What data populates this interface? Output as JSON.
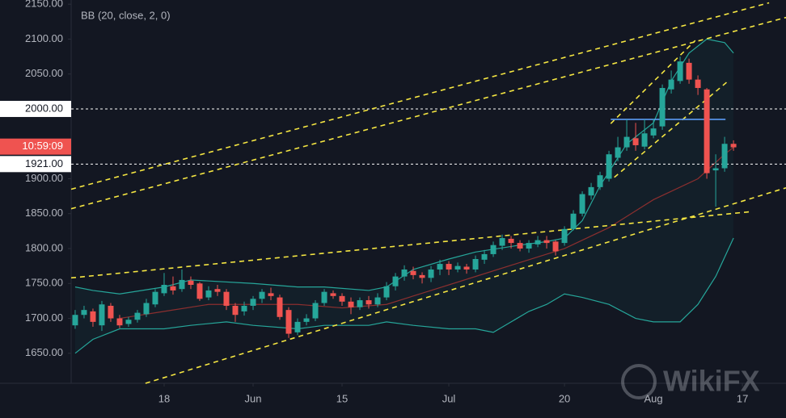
{
  "chart_data": {
    "type": "candlestick",
    "indicator": "BB (20, close, 2, 0)",
    "watermark": "WikiFX",
    "up_color": "#26a69a",
    "down_color": "#ef5350",
    "open": [
      1690,
      1705,
      1710,
      1690,
      1718,
      1700,
      1692,
      1698,
      1706,
      1720,
      1736,
      1746,
      1742,
      1754,
      1750,
      1730,
      1742,
      1738,
      1718,
      1710,
      1718,
      1728,
      1736,
      1730,
      1712,
      1680,
      1695,
      1700,
      1722,
      1736,
      1732,
      1724,
      1716,
      1726,
      1720,
      1730,
      1746,
      1760,
      1768,
      1762,
      1758,
      1770,
      1778,
      1770,
      1774,
      1770,
      1784,
      1792,
      1804,
      1814,
      1808,
      1800,
      1806,
      1812,
      1810,
      1808,
      1828,
      1850,
      1876,
      1888,
      1900,
      1930,
      1945,
      1958,
      1946,
      1962,
      1975,
      2028,
      2040,
      2066,
      2042,
      2028,
      1912,
      1915,
      1950
    ],
    "close": [
      1705,
      1712,
      1695,
      1720,
      1700,
      1690,
      1698,
      1708,
      1722,
      1738,
      1748,
      1740,
      1755,
      1748,
      1728,
      1740,
      1738,
      1718,
      1705,
      1718,
      1728,
      1738,
      1732,
      1702,
      1678,
      1695,
      1700,
      1722,
      1738,
      1732,
      1724,
      1716,
      1726,
      1720,
      1730,
      1746,
      1760,
      1770,
      1762,
      1758,
      1770,
      1778,
      1770,
      1775,
      1770,
      1785,
      1792,
      1805,
      1815,
      1808,
      1800,
      1808,
      1812,
      1808,
      1796,
      1828,
      1850,
      1878,
      1888,
      1905,
      1935,
      1945,
      1960,
      1948,
      1965,
      1972,
      2030,
      2042,
      2068,
      2042,
      2030,
      1908,
      1915,
      1950,
      1945
    ],
    "high": [
      1712,
      1718,
      1714,
      1725,
      1722,
      1705,
      1702,
      1712,
      1728,
      1742,
      1765,
      1760,
      1770,
      1760,
      1752,
      1746,
      1748,
      1742,
      1722,
      1724,
      1732,
      1742,
      1744,
      1734,
      1716,
      1700,
      1706,
      1726,
      1742,
      1740,
      1736,
      1730,
      1730,
      1732,
      1736,
      1752,
      1765,
      1776,
      1774,
      1766,
      1775,
      1784,
      1782,
      1780,
      1778,
      1790,
      1798,
      1810,
      1820,
      1818,
      1812,
      1812,
      1818,
      1818,
      1812,
      1832,
      1855,
      1882,
      1894,
      1910,
      1940,
      1960,
      1985,
      1980,
      1985,
      1986,
      2035,
      2055,
      2075,
      2072,
      2048,
      2030,
      1935,
      1960,
      1955
    ],
    "low": [
      1685,
      1700,
      1688,
      1682,
      1695,
      1686,
      1688,
      1694,
      1702,
      1716,
      1732,
      1734,
      1738,
      1742,
      1725,
      1726,
      1732,
      1712,
      1695,
      1704,
      1712,
      1722,
      1726,
      1698,
      1672,
      1676,
      1690,
      1696,
      1718,
      1728,
      1718,
      1706,
      1712,
      1714,
      1716,
      1726,
      1740,
      1754,
      1756,
      1750,
      1752,
      1762,
      1762,
      1766,
      1764,
      1766,
      1778,
      1788,
      1798,
      1800,
      1796,
      1794,
      1802,
      1800,
      1790,
      1804,
      1826,
      1846,
      1870,
      1884,
      1896,
      1925,
      1940,
      1940,
      1942,
      1958,
      1970,
      2022,
      2036,
      2036,
      2020,
      1900,
      1860,
      1910,
      1940
    ],
    "bands": [
      {
        "color": "#26a69a",
        "x": [
          0,
          2,
          5,
          10,
          13,
          20,
          25,
          28,
          33,
          35,
          38,
          42,
          45,
          50,
          53,
          55,
          57,
          59,
          62,
          65,
          67,
          69,
          71,
          73,
          74
        ],
        "values": [
          1745,
          1740,
          1735,
          1745,
          1755,
          1750,
          1745,
          1745,
          1740,
          1745,
          1770,
          1785,
          1795,
          1805,
          1810,
          1815,
          1840,
          1890,
          1950,
          1980,
          2040,
          2080,
          2100,
          2095,
          2080
        ]
      },
      {
        "color": "#8c2f2f",
        "x": [
          5,
          10,
          15,
          20,
          25,
          30,
          35,
          40,
          45,
          50,
          55,
          60,
          65,
          70,
          73,
          74
        ],
        "values": [
          1700,
          1710,
          1720,
          1720,
          1720,
          1715,
          1720,
          1740,
          1760,
          1780,
          1800,
          1830,
          1870,
          1900,
          1935,
          1945
        ]
      },
      {
        "color": "#26a69a",
        "x": [
          0,
          2,
          5,
          10,
          13,
          17,
          20,
          25,
          28,
          33,
          35,
          38,
          42,
          45,
          47,
          49,
          51,
          53,
          55,
          57,
          60,
          63,
          65,
          68,
          70,
          72,
          74
        ],
        "values": [
          1650,
          1670,
          1685,
          1685,
          1690,
          1695,
          1690,
          1685,
          1690,
          1690,
          1695,
          1690,
          1685,
          1685,
          1680,
          1695,
          1710,
          1720,
          1735,
          1730,
          1720,
          1700,
          1695,
          1695,
          1720,
          1760,
          1815
        ]
      }
    ],
    "trendlines": [
      {
        "x": [
          -0.45,
          78
        ],
        "values": [
          1885,
          2152
        ]
      },
      {
        "x": [
          -0.45,
          79.9
        ],
        "values": [
          1857,
          2131
        ]
      },
      {
        "x": [
          -0.45,
          76.1
        ],
        "values": [
          1758,
          1853
        ]
      },
      {
        "x": [
          7.9,
          79.9
        ],
        "values": [
          1607,
          1887
        ]
      },
      {
        "x": [
          60.2,
          69.7
        ],
        "values": [
          1979,
          2098
        ]
      },
      {
        "x": [
          60.6,
          73.4
        ],
        "values": [
          1902,
          2040
        ]
      }
    ],
    "level_line": {
      "x": [
        60.2,
        73.1
      ],
      "values": [
        1985,
        1985
      ],
      "color": "#5b9cf6"
    },
    "price_labels": [
      {
        "value": 2000,
        "label": "2000.00",
        "color": "#ffffff"
      },
      {
        "value": 1946,
        "label": "10:59:09",
        "color": "#ef5350"
      },
      {
        "value": 1921,
        "label": "1921.00",
        "color": "#ffffff"
      }
    ],
    "xlim": [
      -0.45,
      79.9
    ],
    "ylim": [
      1607,
      2156
    ],
    "xticks": [
      {
        "value": 10,
        "label": "18"
      },
      {
        "value": 20,
        "label": "Jun"
      },
      {
        "value": 30,
        "label": "15"
      },
      {
        "value": 42,
        "label": "Jul"
      },
      {
        "value": 55,
        "label": "20"
      },
      {
        "value": 65,
        "label": "Aug"
      },
      {
        "value": 75,
        "label": "17"
      }
    ],
    "yticks": [
      {
        "value": 2150,
        "label": "2150.00"
      },
      {
        "value": 2100,
        "label": "2100.00"
      },
      {
        "value": 2050,
        "label": "2050.00"
      },
      {
        "value": 2000,
        "label": "2000.00"
      },
      {
        "value": 1950,
        "label": "1950.00"
      },
      {
        "value": 1900,
        "label": "1900.00"
      },
      {
        "value": 1850,
        "label": "1850.00"
      },
      {
        "value": 1800,
        "label": "1800.00"
      },
      {
        "value": 1750,
        "label": "1750.00"
      },
      {
        "value": 1700,
        "label": "1700.00"
      },
      {
        "value": 1650,
        "label": "1650.00"
      }
    ]
  }
}
